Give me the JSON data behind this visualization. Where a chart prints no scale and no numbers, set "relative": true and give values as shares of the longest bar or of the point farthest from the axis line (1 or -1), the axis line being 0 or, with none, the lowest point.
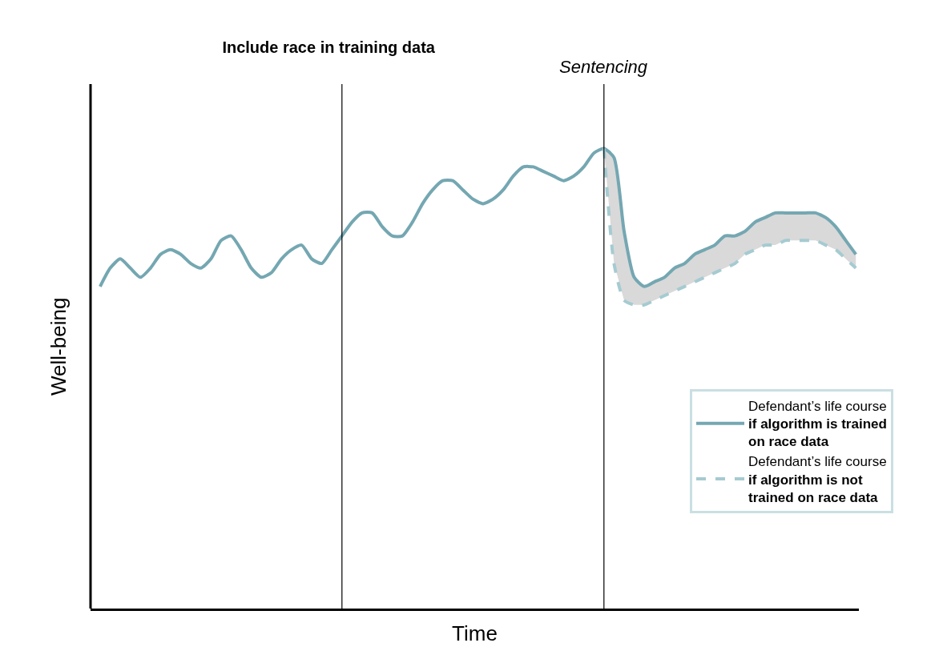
{
  "chart_data": {
    "type": "line",
    "title": "Include race in training data",
    "xlabel": "Time",
    "ylabel": "Well-being",
    "relative": true,
    "categories": [
      null,
      null,
      null,
      null,
      null,
      null,
      null,
      null,
      null,
      null,
      null,
      null,
      null,
      null,
      null,
      null,
      null,
      null,
      null,
      null,
      null,
      null,
      null,
      null,
      null,
      null,
      null,
      null,
      null,
      null,
      null,
      null,
      null,
      null,
      null,
      null,
      null,
      null,
      null,
      null,
      null,
      null,
      null,
      null,
      null,
      null,
      null,
      null,
      null,
      null,
      null,
      null,
      null,
      null,
      null,
      null,
      null,
      null,
      null,
      null,
      null,
      null,
      null,
      null,
      null,
      null,
      null,
      null,
      null,
      null,
      null,
      null,
      null,
      null,
      null,
      null
    ],
    "series": [
      {
        "name": "Defendant’s life course if algorithm is trained on race data",
        "color": "#74a7b2",
        "line_style": "solid",
        "values": [
          0.7,
          0.74,
          0.76,
          0.74,
          0.72,
          0.74,
          0.77,
          0.78,
          0.77,
          0.75,
          0.74,
          0.76,
          0.8,
          0.81,
          0.78,
          0.74,
          0.72,
          0.73,
          0.76,
          0.78,
          0.79,
          0.76,
          0.75,
          0.78,
          0.81,
          0.84,
          0.86,
          0.86,
          0.83,
          0.81,
          0.81,
          0.84,
          0.88,
          0.91,
          0.93,
          0.93,
          0.91,
          0.89,
          0.88,
          0.89,
          0.91,
          0.94,
          0.96,
          0.96,
          0.95,
          0.94,
          0.93,
          0.94,
          0.96,
          0.99,
          1.0,
          0.98,
          0.82,
          0.72,
          0.7,
          0.71,
          0.72,
          0.74,
          0.75,
          0.77,
          0.78,
          0.79,
          0.81,
          0.81,
          0.82,
          0.84,
          0.85,
          0.86,
          0.86,
          0.86,
          0.86,
          0.86,
          0.85,
          0.83,
          0.8,
          0.77
        ]
      },
      {
        "name": "Defendant’s life course if algorithm is not trained on race data",
        "color": "#a5cbd1",
        "line_style": "dashed",
        "values": [
          null,
          null,
          null,
          null,
          null,
          null,
          null,
          null,
          null,
          null,
          null,
          null,
          null,
          null,
          null,
          null,
          null,
          null,
          null,
          null,
          null,
          null,
          null,
          null,
          null,
          null,
          null,
          null,
          null,
          null,
          null,
          null,
          null,
          null,
          null,
          null,
          null,
          null,
          null,
          null,
          null,
          null,
          null,
          null,
          null,
          null,
          null,
          null,
          null,
          null,
          1.0,
          0.75,
          0.67,
          0.66,
          0.66,
          0.67,
          0.68,
          0.69,
          0.7,
          0.71,
          0.72,
          0.73,
          0.74,
          0.75,
          0.77,
          0.78,
          0.79,
          0.79,
          0.8,
          0.8,
          0.8,
          0.8,
          0.79,
          0.78,
          0.76,
          0.74
        ],
        "lower": [
          null,
          null,
          null,
          null,
          null,
          null,
          null,
          null,
          null,
          null,
          null,
          null,
          null,
          null,
          null,
          null,
          null,
          null,
          null,
          null,
          null,
          null,
          null,
          null,
          null,
          null,
          null,
          null,
          null,
          null,
          null,
          null,
          null,
          null,
          null,
          null,
          null,
          null,
          null,
          null,
          null,
          null,
          null,
          null,
          null,
          null,
          null,
          null,
          null,
          null,
          1.0,
          0.75,
          0.67,
          0.66,
          0.66,
          0.67,
          0.68,
          0.69,
          0.7,
          0.71,
          0.72,
          0.73,
          0.74,
          0.75,
          0.77,
          0.78,
          0.79,
          0.79,
          0.8,
          0.8,
          0.8,
          0.8,
          0.79,
          0.78,
          0.76,
          0.74
        ],
        "upper": [
          null,
          null,
          null,
          null,
          null,
          null,
          null,
          null,
          null,
          null,
          null,
          null,
          null,
          null,
          null,
          null,
          null,
          null,
          null,
          null,
          null,
          null,
          null,
          null,
          null,
          null,
          null,
          null,
          null,
          null,
          null,
          null,
          null,
          null,
          null,
          null,
          null,
          null,
          null,
          null,
          null,
          null,
          null,
          null,
          null,
          null,
          null,
          null,
          null,
          null,
          1.0,
          0.98,
          0.82,
          0.72,
          0.7,
          0.71,
          0.72,
          0.74,
          0.75,
          0.77,
          0.78,
          0.79,
          0.81,
          0.81,
          0.82,
          0.84,
          0.85,
          0.86,
          0.86,
          0.86,
          0.86,
          0.86,
          0.85,
          0.83,
          0.8,
          0.77
        ]
      }
    ],
    "annotations": [
      "Sentencing"
    ],
    "legend": "bottom right",
    "marker": "none",
    "tick_labels": false
  }
}
